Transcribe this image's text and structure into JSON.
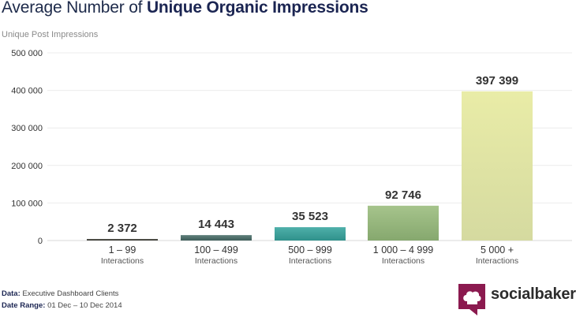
{
  "title": {
    "regular": "Average Number of",
    "bold": "Unique Organic Impressions"
  },
  "footer": {
    "data_label": "Data:",
    "data_value": "Executive Dashboard Clients",
    "range_label": "Date Range:",
    "range_value": "01 Dec – 10 Dec 2014"
  },
  "brand": {
    "name": "socialbakers",
    "icon": "chef-hat-icon",
    "color": "#8b1a4f"
  },
  "chart_data": {
    "type": "bar",
    "ylabel": "Unique Post Impressions",
    "ylim": [
      0,
      500000
    ],
    "yticks": [
      0,
      100000,
      200000,
      300000,
      400000,
      500000
    ],
    "ytick_labels": [
      "0",
      "100 000",
      "200 000",
      "300 000",
      "400 000",
      "500 000"
    ],
    "categories": [
      "1 – 99",
      "100 – 499",
      "500 – 999",
      "1 000 – 4 999",
      "5 000 +"
    ],
    "category_sublabel": "Interactions",
    "values": [
      2372,
      14443,
      35523,
      92746,
      397399
    ],
    "value_labels": [
      "2 372",
      "14 443",
      "35 523",
      "92 746",
      "397 399"
    ],
    "colors": [
      [
        "#5a5a52",
        "#3a3a34"
      ],
      [
        "#5f807b",
        "#3f5e5a"
      ],
      [
        "#4fb0aa",
        "#2f918b"
      ],
      [
        "#a6c48c",
        "#86a86e"
      ],
      [
        "#e9eca7",
        "#d5daa0"
      ]
    ],
    "grid": true
  }
}
